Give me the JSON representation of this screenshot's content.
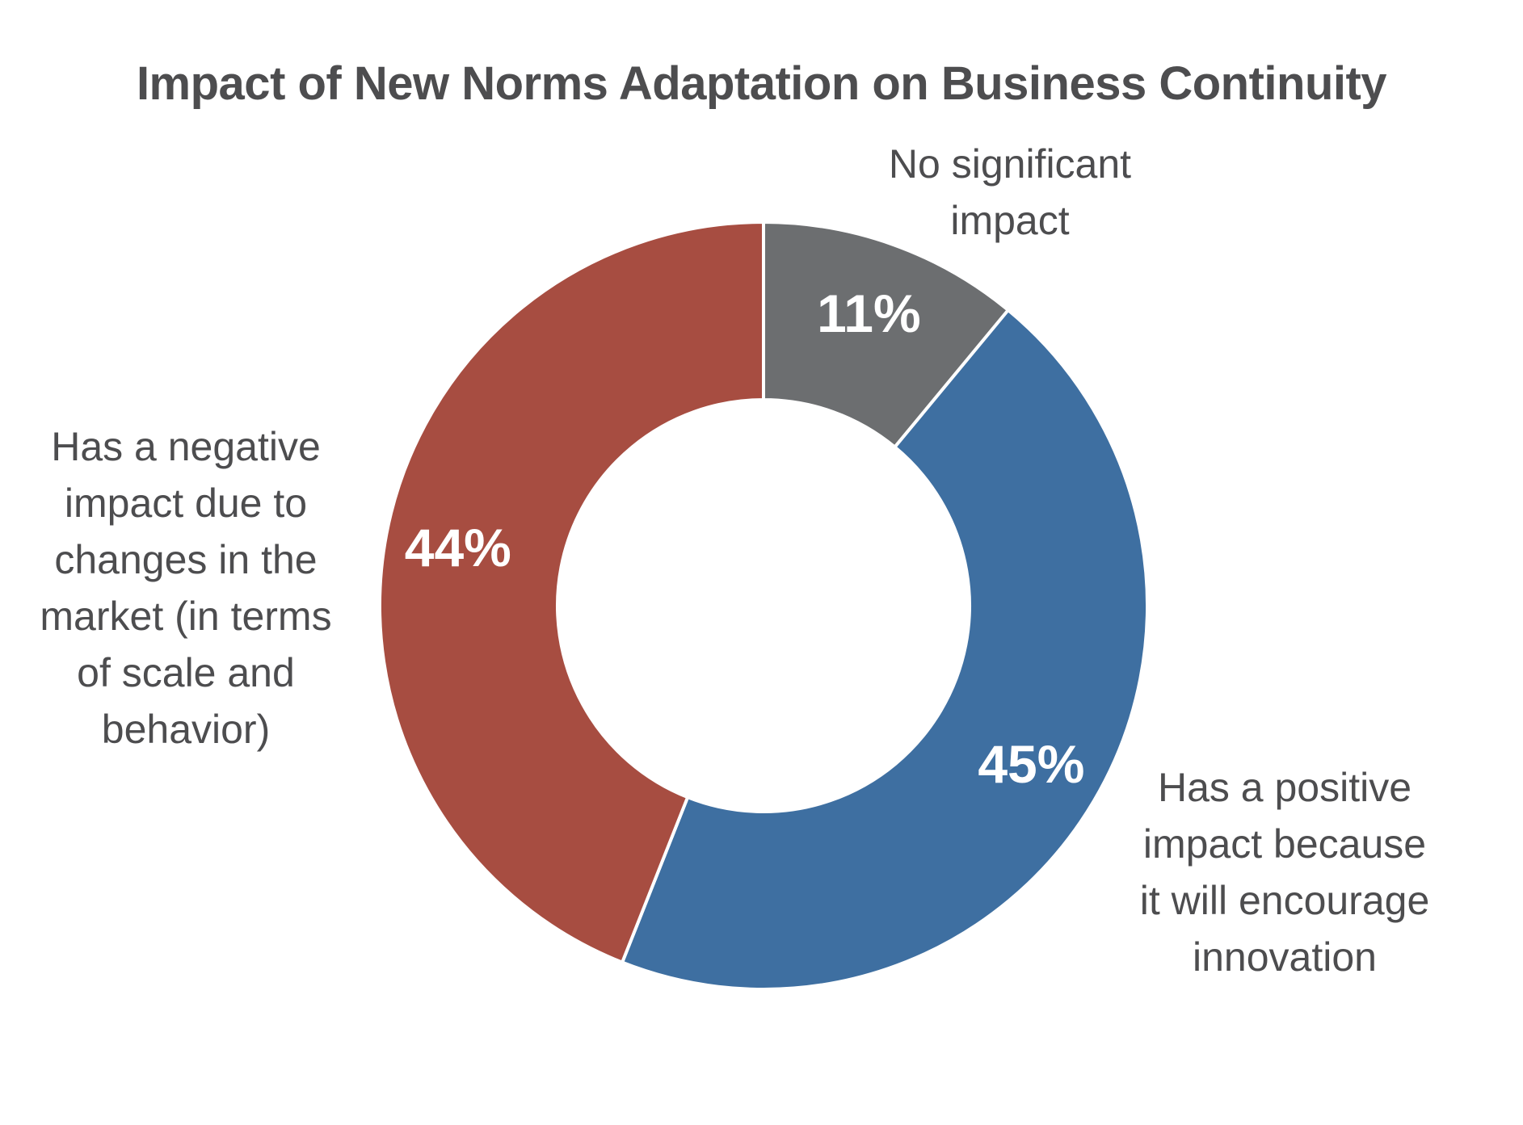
{
  "chart_data": {
    "type": "pie",
    "title": "Impact of New Norms Adaptation on Business Continuity",
    "categories": [
      "No significant\nimpact",
      "Has a positive\nimpact because\nit will encourage\ninnovation",
      "Has a negative\nimpact due to\nchanges in the\nmarket (in terms\nof scale and\nbehavior)"
    ],
    "values": [
      11,
      45,
      44
    ],
    "value_labels": [
      "11%",
      "45%",
      "44%"
    ],
    "colors": [
      "#6c6e70",
      "#3e6fa1",
      "#a74d41"
    ],
    "donut": true,
    "start_angle": "12 o'clock",
    "direction": "clockwise",
    "legend": "none"
  }
}
